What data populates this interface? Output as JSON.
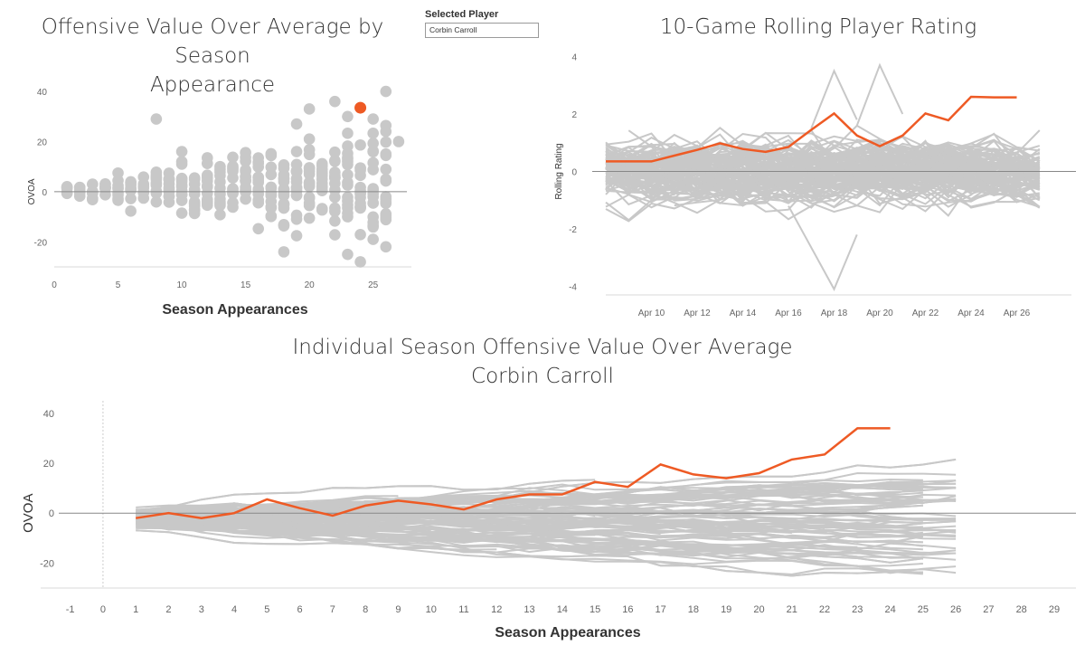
{
  "selector": {
    "label": "Selected Player",
    "value": "Corbin Carroll"
  },
  "colors": {
    "grey": "#c8c8c8",
    "highlight": "#ee5a24",
    "axis": "#888888"
  },
  "chart_data": [
    {
      "id": "scatter",
      "type": "scatter",
      "title": "Offensive Value Over Average by Season Appearance",
      "title_lines": [
        "Offensive Value Over Average by Season",
        "Appearance"
      ],
      "xlabel": "Season Appearances",
      "ylabel": "OVOA",
      "xlim": [
        0,
        28
      ],
      "ylim": [
        -30,
        44
      ],
      "xticks": [
        0,
        5,
        10,
        15,
        20,
        25
      ],
      "yticks": [
        -20,
        0,
        20,
        40
      ],
      "highlight_point": {
        "x": 24,
        "y": 33.5
      },
      "extra_points": [
        [
          8,
          29
        ],
        [
          10,
          16
        ],
        [
          20,
          33
        ],
        [
          22,
          36
        ],
        [
          23,
          30
        ],
        [
          23,
          -25
        ],
        [
          24,
          -28
        ],
        [
          25,
          29
        ],
        [
          26,
          40
        ],
        [
          26,
          -22
        ],
        [
          27,
          20
        ],
        [
          25,
          -19
        ],
        [
          19,
          27
        ],
        [
          18,
          -24
        ]
      ]
    },
    {
      "id": "rolling",
      "type": "line",
      "title": "10-Game Rolling Player Rating",
      "ylabel": "Rolling Rating",
      "ylim": [
        -4.3,
        4.3
      ],
      "yticks": [
        -4,
        -2,
        0,
        2,
        4
      ],
      "xticks": [
        "Apr 10",
        "Apr 12",
        "Apr 14",
        "Apr 16",
        "Apr 18",
        "Apr 20",
        "Apr 22",
        "Apr 24",
        "Apr 26"
      ],
      "x_start_day": 8,
      "x_end_day": 27,
      "highlight_series": {
        "x": [
          8,
          9,
          10,
          11,
          12,
          13,
          14,
          15,
          16,
          17,
          18,
          19,
          20,
          21,
          22,
          23,
          24,
          25,
          26
        ],
        "y": [
          0.35,
          0.35,
          0.35,
          0.55,
          0.75,
          0.98,
          0.78,
          0.68,
          0.85,
          1.45,
          2.02,
          1.25,
          0.88,
          1.25,
          2.02,
          1.78,
          2.6,
          2.58,
          2.58
        ]
      },
      "outliers": [
        {
          "x": 18,
          "y": -4.1
        },
        {
          "x": 20,
          "y": 3.7
        },
        {
          "x": 18,
          "y": 3.5
        }
      ]
    },
    {
      "id": "season",
      "type": "line",
      "title": "Individual Season Offensive Value Over Average",
      "subtitle": "Corbin Carroll",
      "xlabel": "Season Appearances",
      "ylabel": "OVOA",
      "xlim": [
        -1.9,
        29.8
      ],
      "ylim": [
        -30,
        45
      ],
      "xticks": [
        -1,
        0,
        1,
        2,
        3,
        4,
        5,
        6,
        7,
        8,
        9,
        10,
        11,
        12,
        13,
        14,
        15,
        16,
        17,
        18,
        19,
        20,
        21,
        22,
        23,
        24,
        25,
        26,
        27,
        28,
        29
      ],
      "yticks": [
        -20,
        0,
        20,
        40
      ],
      "highlight_series": {
        "x": [
          1,
          2,
          3,
          4,
          5,
          6,
          7,
          8,
          9,
          10,
          11,
          12,
          13,
          14,
          15,
          16,
          17,
          18,
          19,
          20,
          21,
          22,
          23,
          24
        ],
        "y": [
          -2,
          0,
          -2,
          0,
          5.5,
          2,
          -1,
          3,
          5,
          3.5,
          1.5,
          5.5,
          7.5,
          7.5,
          12.5,
          10.5,
          19.5,
          15.5,
          14,
          16,
          21.5,
          23.5,
          34,
          34
        ]
      }
    }
  ]
}
